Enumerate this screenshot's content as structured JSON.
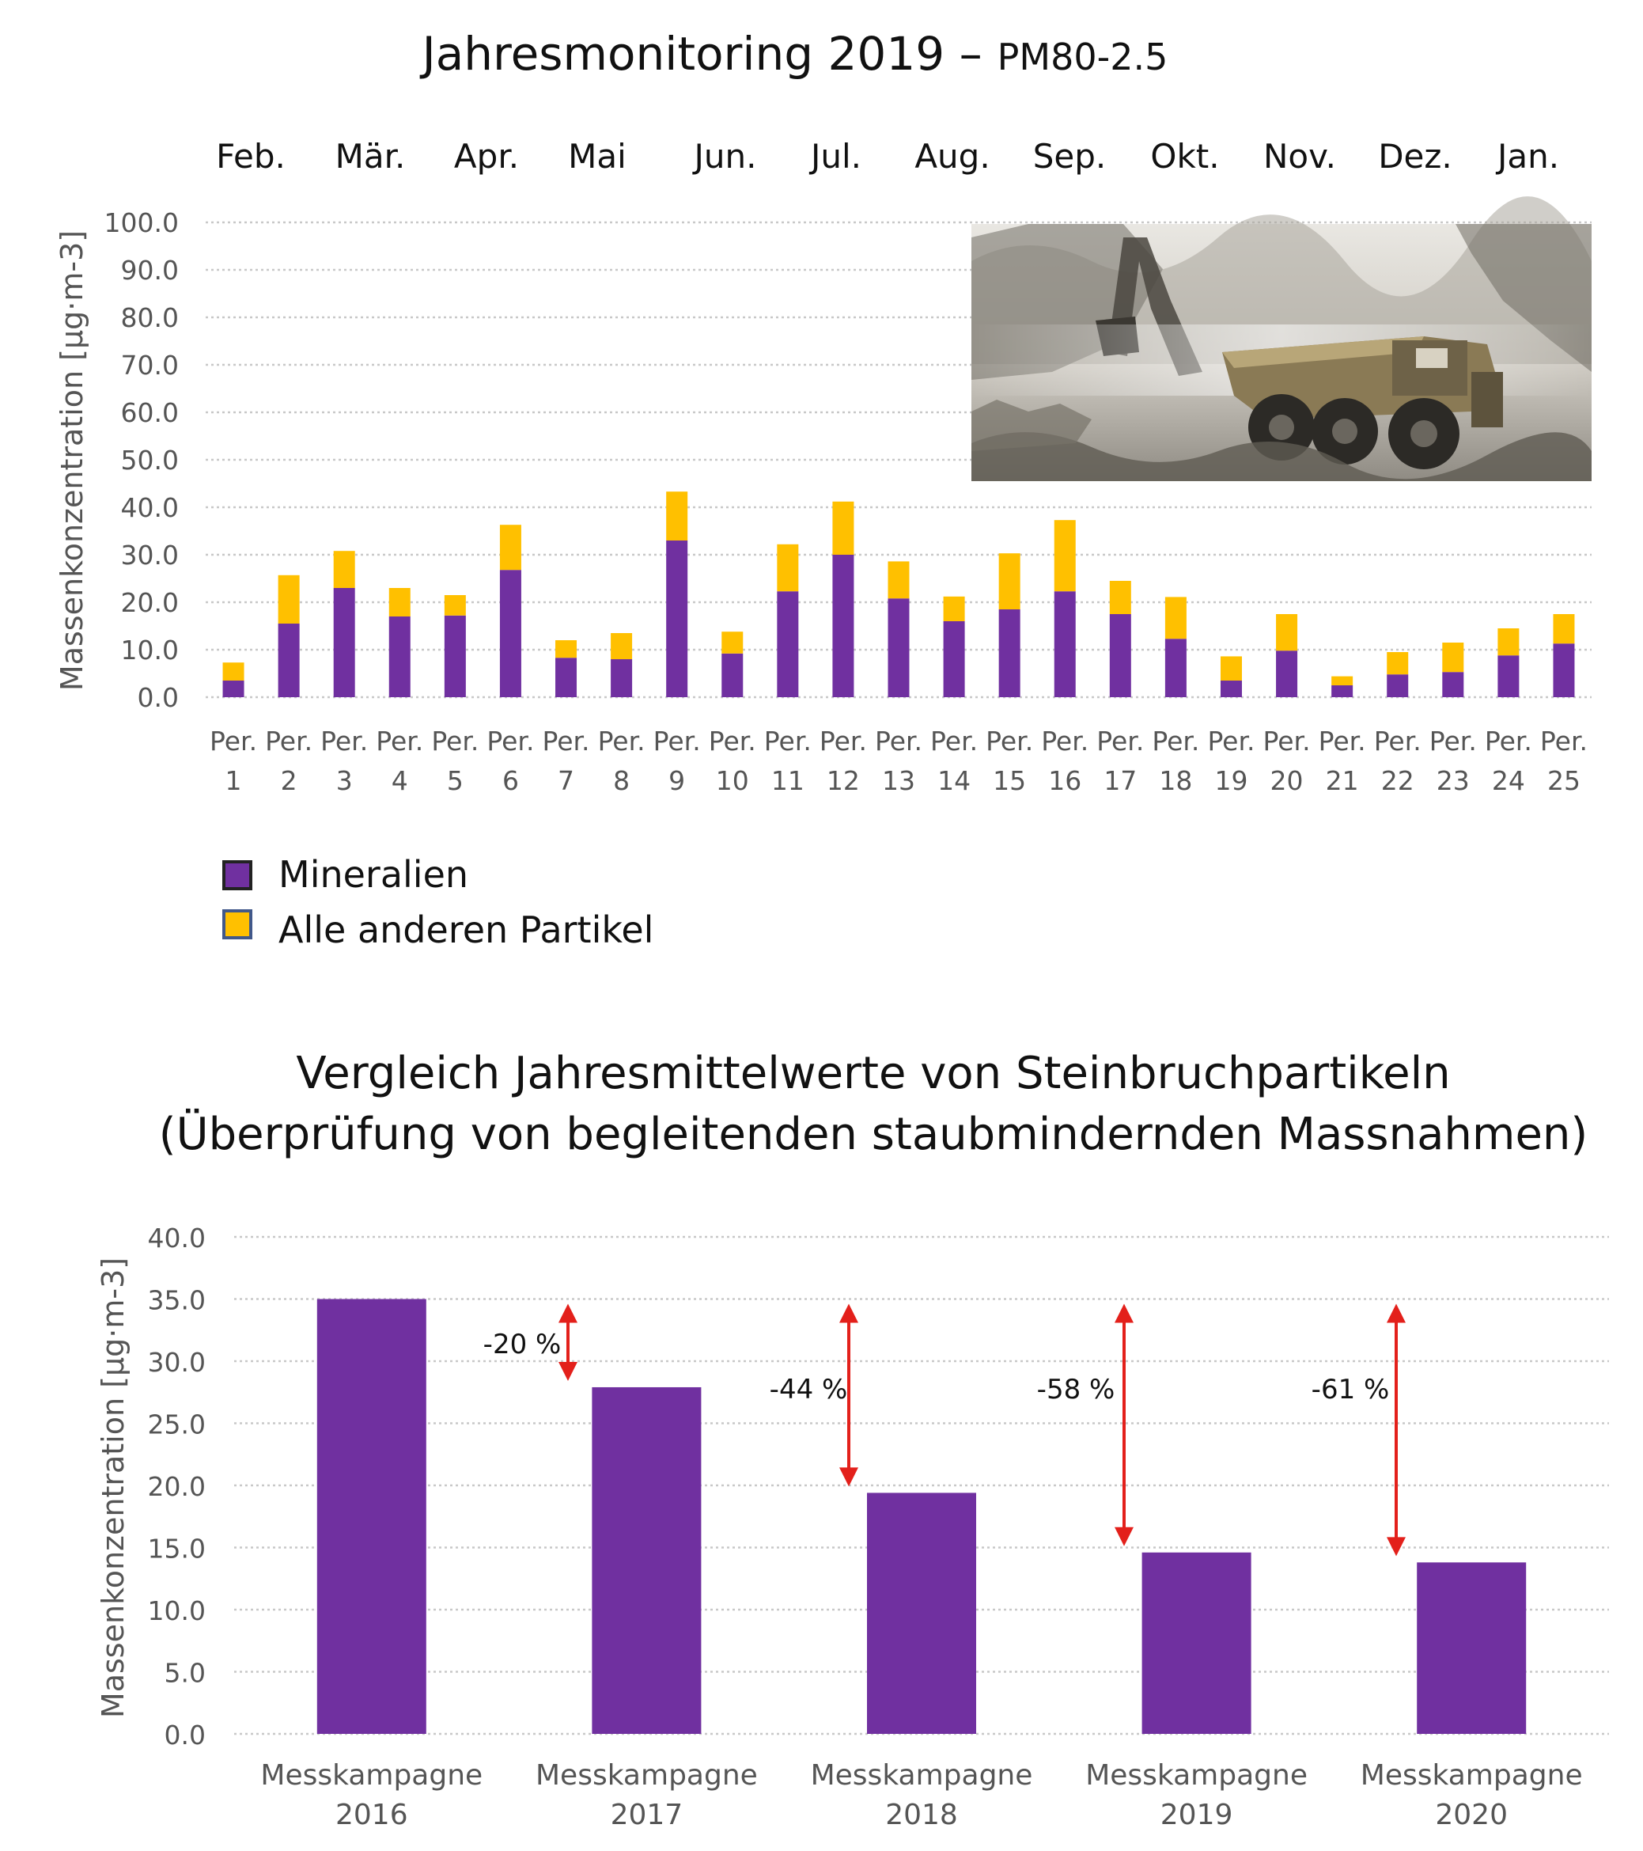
{
  "chart_data": [
    {
      "type": "bar",
      "stacked": true,
      "title": "Jahresmonitoring 2019 –",
      "title_suffix": "PM80-2.5",
      "months": [
        "Feb.",
        "Mär.",
        "Apr.",
        "Mai",
        "Jun.",
        "Jul.",
        "Aug.",
        "Sep.",
        "Okt.",
        "Nov.",
        "Dez.",
        "Jan."
      ],
      "categories": [
        {
          "line1": "Per.",
          "line2": "1"
        },
        {
          "line1": "Per.",
          "line2": "2"
        },
        {
          "line1": "Per.",
          "line2": "3"
        },
        {
          "line1": "Per.",
          "line2": "4"
        },
        {
          "line1": "Per.",
          "line2": "5"
        },
        {
          "line1": "Per.",
          "line2": "6"
        },
        {
          "line1": "Per.",
          "line2": "7"
        },
        {
          "line1": "Per.",
          "line2": "8"
        },
        {
          "line1": "Per.",
          "line2": "9"
        },
        {
          "line1": "Per.",
          "line2": "10"
        },
        {
          "line1": "Per.",
          "line2": "11"
        },
        {
          "line1": "Per.",
          "line2": "12"
        },
        {
          "line1": "Per.",
          "line2": "13"
        },
        {
          "line1": "Per.",
          "line2": "14"
        },
        {
          "line1": "Per.",
          "line2": "15"
        },
        {
          "line1": "Per.",
          "line2": "16"
        },
        {
          "line1": "Per.",
          "line2": "17"
        },
        {
          "line1": "Per.",
          "line2": "18"
        },
        {
          "line1": "Per.",
          "line2": "19"
        },
        {
          "line1": "Per.",
          "line2": "20"
        },
        {
          "line1": "Per.",
          "line2": "21"
        },
        {
          "line1": "Per.",
          "line2": "22"
        },
        {
          "line1": "Per.",
          "line2": "23"
        },
        {
          "line1": "Per.",
          "line2": "24"
        },
        {
          "line1": "Per.",
          "line2": "25"
        }
      ],
      "series": [
        {
          "name": "Mineralien",
          "color": "#7030a0",
          "values": [
            3.5,
            15.5,
            23.0,
            17.0,
            17.2,
            26.8,
            8.3,
            8.0,
            33.0,
            9.2,
            22.3,
            30.0,
            20.8,
            16.0,
            18.5,
            22.3,
            17.5,
            12.3,
            3.5,
            9.8,
            2.5,
            4.8,
            5.3,
            8.8,
            11.3
          ]
        },
        {
          "name": "Alle anderen Partikel",
          "color": "#ffc000",
          "values": [
            3.8,
            10.2,
            7.8,
            6.0,
            4.3,
            9.5,
            3.7,
            5.5,
            10.3,
            4.6,
            9.9,
            11.2,
            7.8,
            5.2,
            11.8,
            15.0,
            7.0,
            8.8,
            5.1,
            7.7,
            1.9,
            4.7,
            6.2,
            5.7,
            6.2
          ]
        }
      ],
      "ylabel": "Massenkonzentration [µg·m-3]",
      "ylim": [
        0,
        100
      ],
      "yticks": [
        "0.0",
        "10.0",
        "20.0",
        "30.0",
        "40.0",
        "50.0",
        "60.0",
        "70.0",
        "80.0",
        "90.0",
        "100.0"
      ],
      "legend": "bottom-left",
      "grid": true
    },
    {
      "type": "bar",
      "title": "Vergleich Jahresmittelwerte von Steinbruchpartikeln",
      "subtitle": "(Überprüfung von begleitenden staubmindernden Massnahmen)",
      "categories": [
        {
          "line1": "Messkampagne",
          "line2": "2016"
        },
        {
          "line1": "Messkampagne",
          "line2": "2017"
        },
        {
          "line1": "Messkampagne",
          "line2": "2018"
        },
        {
          "line1": "Messkampagne",
          "line2": "2019"
        },
        {
          "line1": "Messkampagne",
          "line2": "2020"
        }
      ],
      "values": [
        35.0,
        27.9,
        19.4,
        14.6,
        13.8
      ],
      "color": "#7030a0",
      "annotations": [
        "-20 %",
        "-44 %",
        "-58 %",
        "-61 %"
      ],
      "arrow_color": "#e3201b",
      "ylabel": "Massenkonzentration [µg·m-3]",
      "ylim": [
        0,
        40
      ],
      "yticks": [
        "0.0",
        "5.0",
        "10.0",
        "15.0",
        "20.0",
        "25.0",
        "30.0",
        "35.0",
        "40.0"
      ],
      "grid": true
    }
  ]
}
